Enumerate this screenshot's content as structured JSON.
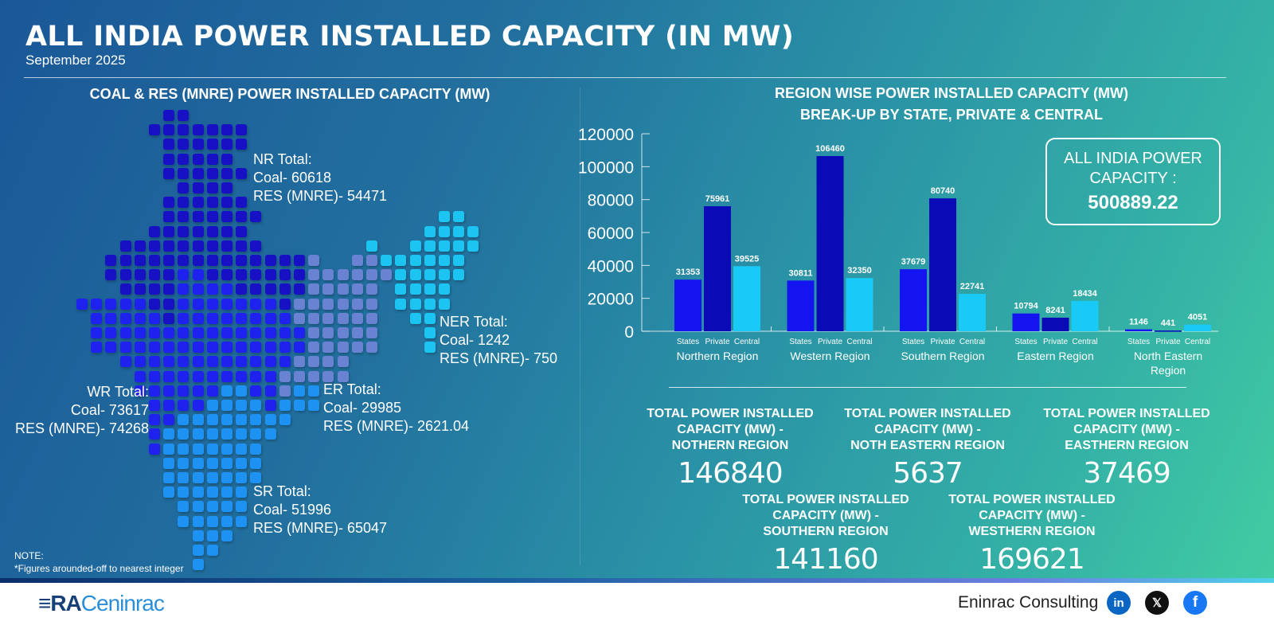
{
  "header": {
    "title": "ALL INDIA POWER INSTALLED CAPACITY (IN MW)",
    "subtitle": "September 2025"
  },
  "left": {
    "heading": "COAL & RES (MNRE) POWER INSTALLED CAPACITY (MW)",
    "regions": [
      {
        "id": "nr",
        "title": "NR Total:",
        "coal": "Coal- 60618",
        "res": "RES (MNRE)- 54471",
        "color": "#1710c4"
      },
      {
        "id": "ner",
        "title": "NER Total:",
        "coal": "Coal- 1242",
        "res": "RES (MNRE)- 750",
        "color": "#1cc4f2"
      },
      {
        "id": "er",
        "title": "ER Total:",
        "coal": "Coal- 29985",
        "res": "RES (MNRE)- 2621.04",
        "color": "#6a82d2"
      },
      {
        "id": "wr",
        "title": "WR Total:",
        "coal": "Coal- 73617",
        "res": "RES (MNRE)- 74268",
        "color": "#1f22ee"
      },
      {
        "id": "sr",
        "title": "SR Total:",
        "coal": "Coal- 51996",
        "res": "RES (MNRE)- 65047",
        "color": "#1e92f2"
      }
    ],
    "note_title": "NOTE:",
    "note": "*Figures arounded-off to nearest integer"
  },
  "right": {
    "heading_line1": "REGION WISE POWER INSTALLED CAPACITY (MW)",
    "heading_line2": "BREAK-UP BY STATE, PRIVATE & CENTRAL",
    "total_box": {
      "line1": "ALL INDIA POWER",
      "line2": "CAPACITY :",
      "value": "500889.22"
    },
    "totals": [
      {
        "line1": "TOTAL POWER INSTALLED",
        "line2": "CAPACITY (MW) -",
        "line3": "NOTHERN REGION",
        "value": "146840"
      },
      {
        "line1": "TOTAL POWER INSTALLED",
        "line2": "CAPACITY (MW) -",
        "line3": "NOTH EASTERN REGION",
        "value": "5637"
      },
      {
        "line1": "TOTAL POWER INSTALLED",
        "line2": "CAPACITY (MW) -",
        "line3": "EASTHERN REGION",
        "value": "37469"
      },
      {
        "line1": "TOTAL POWER INSTALLED",
        "line2": "CAPACITY (MW) -",
        "line3": "SOUTHERN REGION",
        "value": "141160"
      },
      {
        "line1": "TOTAL POWER INSTALLED",
        "line2": "CAPACITY (MW) -",
        "line3": "WESTHERN REGION",
        "value": "169621"
      }
    ]
  },
  "chart_data": {
    "type": "bar",
    "categories": [
      "Northern Region",
      "Western Region",
      "Southern Region",
      "Eastern Region",
      "North Eastern Region"
    ],
    "sub_labels": [
      "States",
      "Private",
      "Central"
    ],
    "series": [
      {
        "name": "States",
        "values": [
          31353,
          30811,
          37679,
          10794,
          1146
        ],
        "color": "#1414f0"
      },
      {
        "name": "Private",
        "values": [
          75961,
          106460,
          80740,
          8241,
          441
        ],
        "color": "#0a0ab6"
      },
      {
        "name": "Central",
        "values": [
          39525,
          32350,
          22741,
          18434,
          4051
        ],
        "color": "#19c9f6"
      }
    ],
    "ylim": [
      0,
      120000
    ],
    "yticks": [
      0,
      20000,
      40000,
      60000,
      80000,
      100000,
      120000
    ],
    "grid": false,
    "legend": "none"
  },
  "footer": {
    "logo": "RAC eninrac",
    "brand": "Eninrac Consulting",
    "social": [
      {
        "name": "linkedin",
        "glyph": "in",
        "color": "#0a66c2"
      },
      {
        "name": "x",
        "glyph": "𝕏",
        "color": "#111111"
      },
      {
        "name": "facebook",
        "glyph": "f",
        "color": "#1877f2"
      }
    ]
  }
}
